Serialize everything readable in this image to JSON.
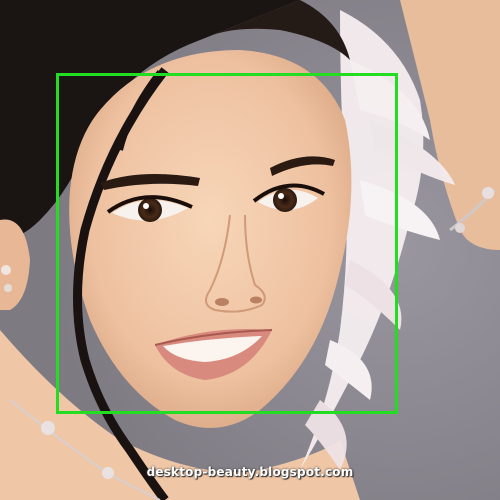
{
  "image": {
    "subject": "portrait-photo",
    "watermark_text": "desktop-beauty.blogspot.com"
  },
  "annotation": {
    "type": "face-detection-box",
    "color": "#22dd22"
  },
  "colors": {
    "background": "#8e8a90",
    "skin": "#f0c9a8",
    "skin_shadow": "#d9a683",
    "hair": "#1a1412",
    "feathers": "#f6eef0",
    "lips": "#d98a7e"
  }
}
